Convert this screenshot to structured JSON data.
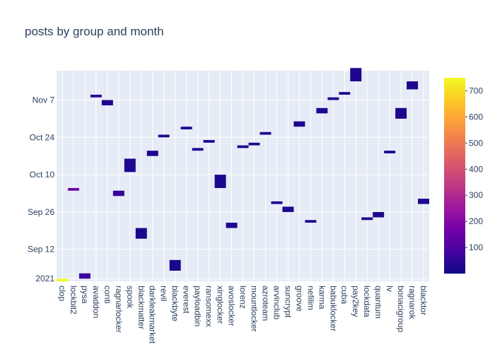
{
  "chart_data": {
    "type": "heatmap",
    "title": "posts by group and month",
    "xlabel": "",
    "ylabel": "",
    "x_categories": [
      "clop",
      "lockbit2",
      "pysa",
      "avaddon",
      "conti",
      "ragnarlocker",
      "spook",
      "blackmatter",
      "darkleakmarket",
      "revil",
      "blackbyte",
      "everest",
      "payloadbin",
      "ransomexx",
      "xinglocker",
      "avoslocker",
      "lorenz",
      "mountlocker",
      "azroteam",
      "arvinclub",
      "suncrypt",
      "groove",
      "nefilim",
      "karma",
      "babuklocker",
      "cuba",
      "pay2key",
      "lockdata",
      "quantum",
      "lv",
      "bonacigroup",
      "ragnarok",
      "blacktor"
    ],
    "y_tick_labels": [
      "2021",
      "Sep 12",
      "Sep 26",
      "Oct 10",
      "Oct 24",
      "Nov 7"
    ],
    "y_tick_dates": [
      "2021-09-01",
      "2021-09-12",
      "2021-09-26",
      "2021-10-10",
      "2021-10-24",
      "2021-11-07"
    ],
    "y_range": [
      "2021-08-31",
      "2021-11-18"
    ],
    "grid": true,
    "colorbar": {
      "range": [
        0,
        750
      ],
      "ticks": [
        100,
        200,
        300,
        400,
        500,
        600,
        700
      ],
      "colorscale": [
        "#0d0887",
        "#46039f",
        "#7201a8",
        "#9c179e",
        "#bd3786",
        "#d8576b",
        "#ed7953",
        "#fb9f3a",
        "#fdca26",
        "#f0f921"
      ],
      "position": "right"
    },
    "cells": [
      {
        "group": "clop",
        "start": "2021-08-31",
        "end": "2021-09-01",
        "value": 750
      },
      {
        "group": "lockbit2",
        "start": "2021-10-04",
        "end": "2021-10-05",
        "value": 160
      },
      {
        "group": "pysa",
        "start": "2021-09-01",
        "end": "2021-09-03",
        "value": 70
      },
      {
        "group": "avaddon",
        "start": "2021-11-08",
        "end": "2021-11-09",
        "value": 50
      },
      {
        "group": "conti",
        "start": "2021-11-05",
        "end": "2021-11-07",
        "value": 30
      },
      {
        "group": "ragnarlocker",
        "start": "2021-10-02",
        "end": "2021-10-04",
        "value": 60
      },
      {
        "group": "spook",
        "start": "2021-10-11",
        "end": "2021-10-16",
        "value": 25
      },
      {
        "group": "blackmatter",
        "start": "2021-09-16",
        "end": "2021-09-20",
        "value": 20
      },
      {
        "group": "darkleakmarket",
        "start": "2021-10-17",
        "end": "2021-10-19",
        "value": 25
      },
      {
        "group": "revil",
        "start": "2021-10-24",
        "end": "2021-10-25",
        "value": 25
      },
      {
        "group": "blackbyte",
        "start": "2021-09-04",
        "end": "2021-09-08",
        "value": 20
      },
      {
        "group": "everest",
        "start": "2021-10-27",
        "end": "2021-10-28",
        "value": 25
      },
      {
        "group": "payloadbin",
        "start": "2021-10-19",
        "end": "2021-10-20",
        "value": 25
      },
      {
        "group": "ransomexx",
        "start": "2021-10-22",
        "end": "2021-10-23",
        "value": 25
      },
      {
        "group": "xinglocker",
        "start": "2021-10-05",
        "end": "2021-10-10",
        "value": 20
      },
      {
        "group": "avoslocker",
        "start": "2021-09-20",
        "end": "2021-09-22",
        "value": 25
      },
      {
        "group": "lorenz",
        "start": "2021-10-20",
        "end": "2021-10-21",
        "value": 25
      },
      {
        "group": "mountlocker",
        "start": "2021-10-21",
        "end": "2021-10-22",
        "value": 25
      },
      {
        "group": "azroteam",
        "start": "2021-10-25",
        "end": "2021-10-26",
        "value": 25
      },
      {
        "group": "arvinclub",
        "start": "2021-09-29",
        "end": "2021-09-30",
        "value": 25
      },
      {
        "group": "suncrypt",
        "start": "2021-09-26",
        "end": "2021-09-28",
        "value": 25
      },
      {
        "group": "groove",
        "start": "2021-10-28",
        "end": "2021-10-30",
        "value": 25
      },
      {
        "group": "nefilim",
        "start": "2021-09-22",
        "end": "2021-09-23",
        "value": 25
      },
      {
        "group": "karma",
        "start": "2021-11-02",
        "end": "2021-11-04",
        "value": 25
      },
      {
        "group": "babuklocker",
        "start": "2021-11-07",
        "end": "2021-11-08",
        "value": 25
      },
      {
        "group": "cuba",
        "start": "2021-11-09",
        "end": "2021-11-10",
        "value": 25
      },
      {
        "group": "pay2key",
        "start": "2021-11-14",
        "end": "2021-11-19",
        "value": 25
      },
      {
        "group": "lockdata",
        "start": "2021-09-23",
        "end": "2021-09-24",
        "value": 25
      },
      {
        "group": "quantum",
        "start": "2021-09-24",
        "end": "2021-09-26",
        "value": 25
      },
      {
        "group": "lv",
        "start": "2021-10-18",
        "end": "2021-10-19",
        "value": 25
      },
      {
        "group": "bonacigroup",
        "start": "2021-10-31",
        "end": "2021-11-04",
        "value": 25
      },
      {
        "group": "ragnarok",
        "start": "2021-11-11",
        "end": "2021-11-14",
        "value": 25
      },
      {
        "group": "blacktor",
        "start": "2021-09-29",
        "end": "2021-10-01",
        "value": 25
      }
    ]
  }
}
